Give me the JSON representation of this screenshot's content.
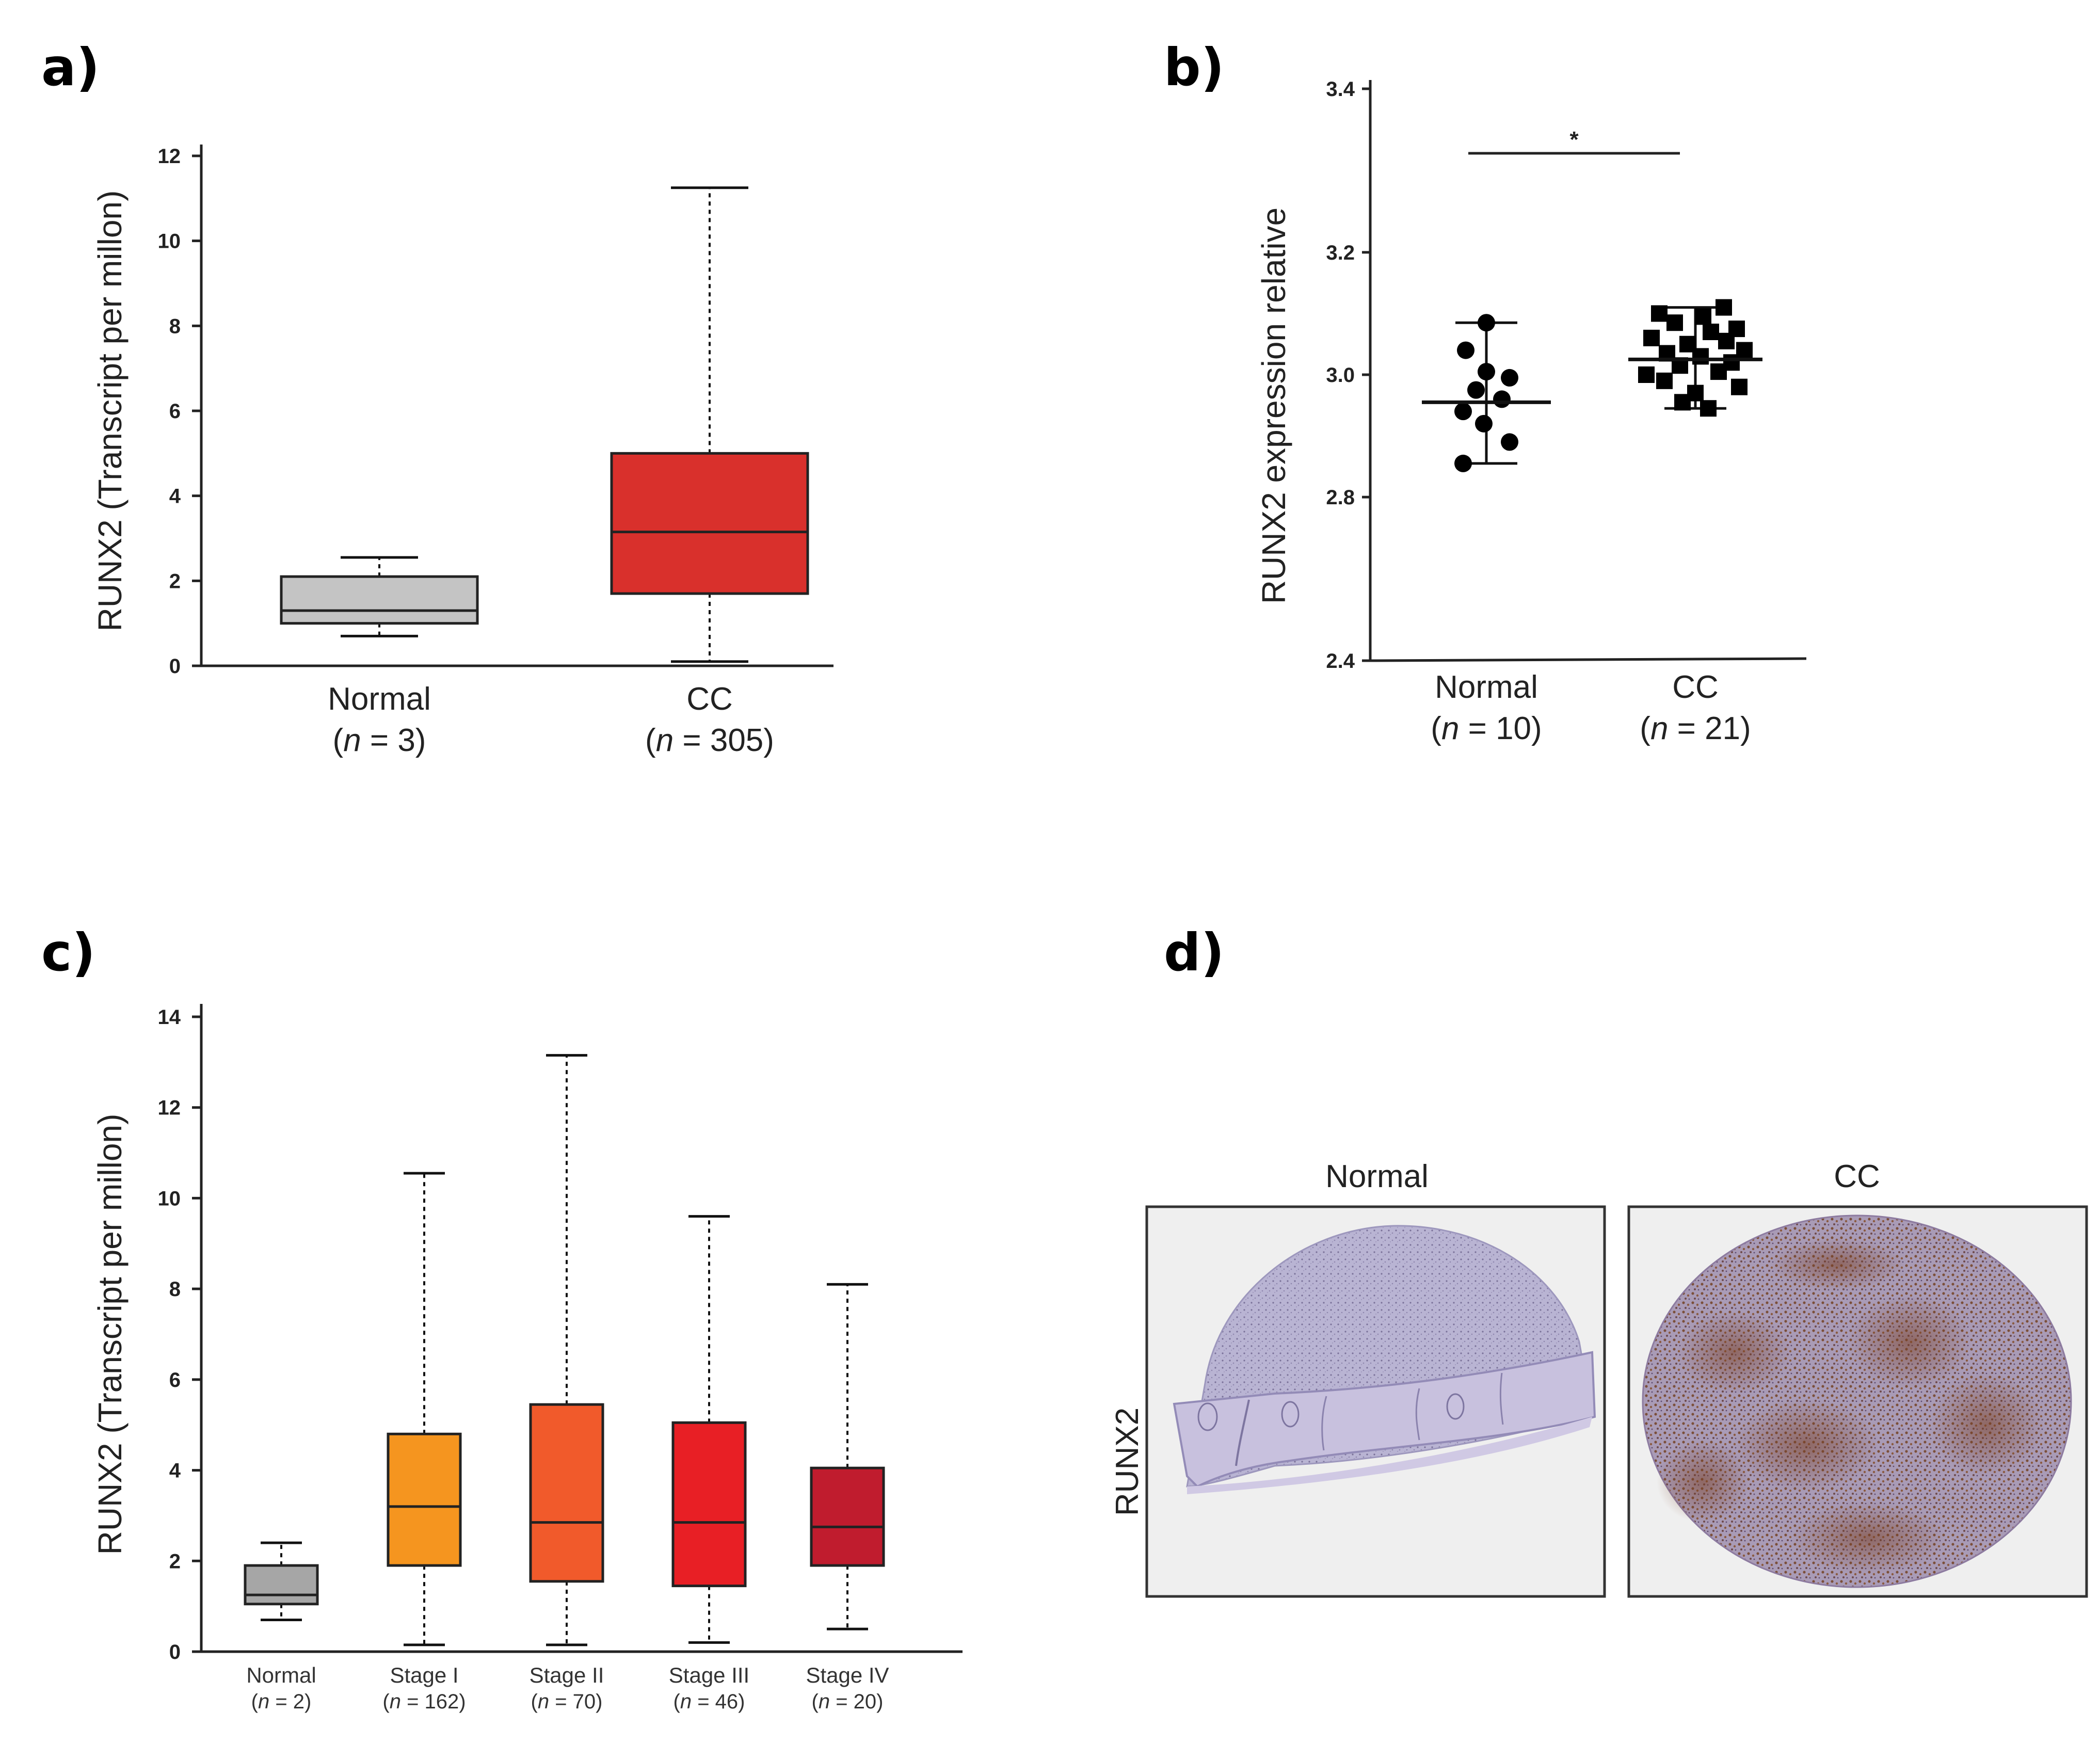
{
  "panels": {
    "a": {
      "label": "a)"
    },
    "b": {
      "label": "b)"
    },
    "c": {
      "label": "c)"
    },
    "d": {
      "label": "d)"
    }
  },
  "chart_data": [
    {
      "id": "a",
      "type": "box",
      "ylabel": "RUNX2 (Transcript per millon)",
      "ylim": [
        0,
        12
      ],
      "yticks": [
        "0",
        "2",
        "4",
        "6",
        "8",
        "10",
        "12"
      ],
      "categories": [
        "Normal",
        "CC"
      ],
      "n_labels": [
        [
          "(",
          "n",
          " = 3)"
        ],
        [
          "(",
          "n",
          " = 305)"
        ]
      ],
      "boxes": [
        {
          "name": "Normal",
          "min": 0.7,
          "q1": 1.0,
          "median": 1.3,
          "q3": 2.1,
          "max": 2.55,
          "color": "#c4c4c4"
        },
        {
          "name": "CC",
          "min": 0.1,
          "q1": 1.7,
          "median": 3.15,
          "q3": 5.0,
          "max": 11.25,
          "color": "#d9302c"
        }
      ]
    },
    {
      "id": "b",
      "type": "scatter",
      "ylabel": "RUNX2 expression relative",
      "ylim": [
        2.4,
        3.4
      ],
      "yticks": [
        "2.4",
        "2.8",
        "3.0",
        "3.2",
        "3.4"
      ],
      "categories": [
        "Normal",
        "CC"
      ],
      "n_labels": [
        [
          "(",
          "n",
          " = 10)"
        ],
        [
          "(",
          "n",
          " = 21)"
        ]
      ],
      "significance": "*",
      "groups": [
        {
          "name": "Normal",
          "marker": "circle",
          "mean": 2.955,
          "low": 2.855,
          "high": 3.085,
          "values": [
            3.085,
            3.04,
            3.005,
            2.995,
            2.975,
            2.96,
            2.94,
            2.92,
            2.89,
            2.855
          ]
        },
        {
          "name": "CC",
          "marker": "square",
          "mean": 3.025,
          "low": 2.945,
          "high": 3.11,
          "values": [
            3.11,
            3.1,
            3.095,
            3.085,
            3.075,
            3.07,
            3.06,
            3.055,
            3.05,
            3.04,
            3.035,
            3.03,
            3.02,
            3.015,
            3.005,
            3.0,
            2.99,
            2.98,
            2.97,
            2.955,
            2.945
          ]
        }
      ]
    },
    {
      "id": "c",
      "type": "box",
      "ylabel": "RUNX2 (Transcript per millon)",
      "ylim": [
        0,
        14
      ],
      "yticks": [
        "0",
        "2",
        "4",
        "6",
        "8",
        "10",
        "12",
        "14"
      ],
      "categories": [
        "Normal",
        "Stage I",
        "Stage II",
        "Stage III",
        "Stage IV"
      ],
      "n_labels": [
        [
          "(",
          "n",
          " = 2)"
        ],
        [
          "(",
          "n",
          " = 162)"
        ],
        [
          "(",
          "n",
          " = 70)"
        ],
        [
          "(",
          "n",
          " = 46)"
        ],
        [
          "(",
          "n",
          " = 20)"
        ]
      ],
      "boxes": [
        {
          "name": "Normal",
          "min": 0.7,
          "q1": 1.05,
          "median": 1.25,
          "q3": 1.9,
          "max": 2.4,
          "color": "#a6a6a6"
        },
        {
          "name": "Stage I",
          "min": 0.15,
          "q1": 1.9,
          "median": 3.2,
          "q3": 4.8,
          "max": 10.55,
          "color": "#f5951f"
        },
        {
          "name": "Stage II",
          "min": 0.15,
          "q1": 1.55,
          "median": 2.85,
          "q3": 5.45,
          "max": 13.15,
          "color": "#f15a2b"
        },
        {
          "name": "Stage III",
          "min": 0.2,
          "q1": 1.45,
          "median": 2.85,
          "q3": 5.05,
          "max": 9.6,
          "color": "#e81f25"
        },
        {
          "name": "Stage IV",
          "min": 0.5,
          "q1": 1.9,
          "median": 2.75,
          "q3": 4.05,
          "max": 8.1,
          "color": "#c01c2e"
        }
      ]
    }
  ],
  "micrographs": {
    "row_label": "RUNX2",
    "columns": [
      "Normal",
      "CC"
    ]
  }
}
